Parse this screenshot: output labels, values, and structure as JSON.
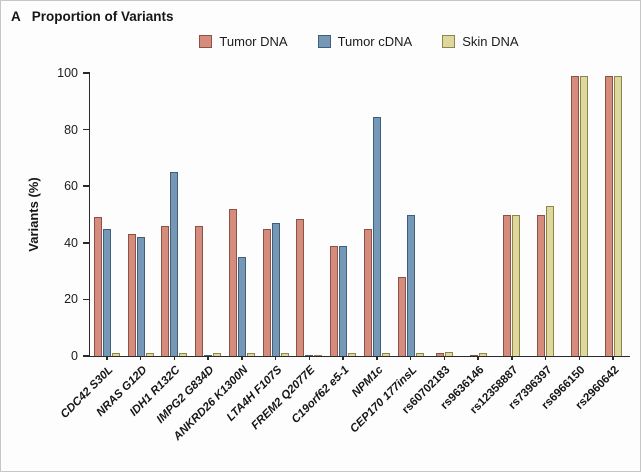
{
  "figure": {
    "panel_label": "A",
    "title": "Proportion of Variants"
  },
  "chart_data": {
    "type": "bar",
    "title": "Proportion of Variants",
    "panel_label": "A",
    "ylabel": "Variants (%)",
    "ylim": [
      0,
      100
    ],
    "yticks": [
      0,
      20,
      40,
      60,
      80,
      100
    ],
    "grid": false,
    "legend_position": "top",
    "categories": [
      "CDC42 S30L",
      "NRAS G12D",
      "IDH1 R132C",
      "IMPG2 G834D",
      "ANKRD26 K1300N",
      "LTA4H F107S",
      "FREM2 Q2077E",
      "C19orf62 e5-1",
      "NPM1c",
      "CEP170 177insL",
      "rs60702183",
      "rs9636146",
      "rs12358887",
      "rs7396397",
      "rs6966150",
      "rs2960642"
    ],
    "series": [
      {
        "name": "Tumor DNA",
        "color": "#d68c7c",
        "border_color": "#8a5346",
        "values": [
          49,
          43,
          46,
          46,
          52,
          45,
          48.5,
          39,
          45,
          28,
          1,
          0.5,
          50,
          50,
          99,
          99
        ]
      },
      {
        "name": "Tumor cDNA",
        "color": "#7498b6",
        "border_color": "#415f7b",
        "values": [
          45,
          42,
          65,
          0.5,
          35,
          47,
          0.5,
          39,
          84.5,
          50,
          0,
          0,
          0,
          0,
          0,
          0
        ]
      },
      {
        "name": "Skin DNA",
        "color": "#ded89c",
        "border_color": "#8c864d",
        "values": [
          1,
          1,
          1,
          1,
          1,
          1,
          0.5,
          1,
          1,
          1,
          1.5,
          1,
          50,
          53,
          99,
          99
        ]
      }
    ]
  }
}
